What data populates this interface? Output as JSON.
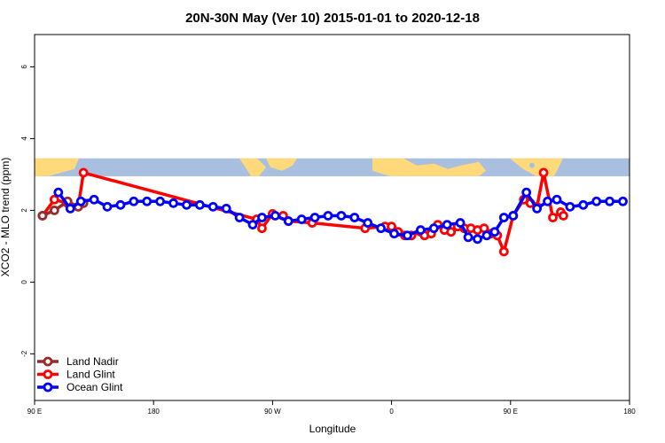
{
  "chart_data": {
    "type": "line",
    "title": "20N-30N May (Ver 10)   2015-01-01 to 2020-12-18",
    "xlabel": "Longitude",
    "ylabel": "XCO2 - MLO trend (ppm)",
    "xlim": [
      90,
      540
    ],
    "ylim": [
      -3.3,
      6.9
    ],
    "x_ticks": [
      {
        "value": 90,
        "label": "90 E"
      },
      {
        "value": 180,
        "label": "180"
      },
      {
        "value": 270,
        "label": "90 W"
      },
      {
        "value": 360,
        "label": "0"
      },
      {
        "value": 450,
        "label": "90 E"
      },
      {
        "value": 540,
        "label": "180"
      }
    ],
    "y_ticks": [
      {
        "value": -2,
        "label": "-2"
      },
      {
        "value": 0,
        "label": "0"
      },
      {
        "value": 2,
        "label": "2"
      },
      {
        "value": 4,
        "label": "4"
      },
      {
        "value": 6,
        "label": "6"
      }
    ],
    "map_strip": {
      "y_bottom": 2.95,
      "y_top": 3.45,
      "ocean_color": "#a9bfe0",
      "land_color": "#ffd97a"
    },
    "legend": {
      "position": "bottom-left"
    },
    "series": [
      {
        "name": "Land Nadir",
        "color": "#9b2a2a",
        "x": [
          96,
          105,
          115,
          123,
          127
        ],
        "y": [
          1.85,
          2.0,
          2.25,
          2.1,
          2.2
        ]
      },
      {
        "name": "Land Glint",
        "color": "#ff0000",
        "x": [
          96,
          105,
          115,
          123,
          127,
          258,
          262,
          270,
          278,
          282,
          300,
          340,
          355,
          360,
          365,
          370,
          375,
          382,
          385,
          390,
          395,
          400,
          405,
          410,
          415,
          420,
          425,
          430,
          435,
          440,
          445,
          452,
          460,
          465,
          470,
          475,
          482,
          488,
          490
        ],
        "y": [
          1.85,
          2.3,
          2.2,
          2.1,
          3.05,
          1.75,
          1.5,
          1.9,
          1.85,
          1.7,
          1.65,
          1.5,
          1.55,
          1.55,
          1.4,
          1.3,
          1.3,
          1.4,
          1.3,
          1.35,
          1.6,
          1.45,
          1.4,
          1.55,
          1.5,
          1.5,
          1.45,
          1.5,
          1.35,
          1.3,
          0.85,
          1.85,
          2.3,
          2.2,
          2.1,
          3.05,
          1.8,
          1.95,
          1.85
        ],
        "draw_order": [
          0,
          1,
          2,
          3,
          4
        ]
      },
      {
        "name": "Ocean Glint",
        "color": "#0000ff",
        "x": [
          108,
          117,
          125,
          135,
          145,
          155,
          165,
          175,
          185,
          195,
          205,
          215,
          225,
          235,
          245,
          255,
          262,
          272,
          282,
          292,
          302,
          312,
          322,
          332,
          342,
          352,
          362,
          372,
          382,
          392,
          402,
          412,
          418,
          425,
          432,
          438,
          445,
          452,
          462,
          470,
          478,
          485,
          495,
          505,
          515,
          525,
          535
        ],
        "y": [
          2.5,
          2.05,
          2.25,
          2.3,
          2.1,
          2.15,
          2.25,
          2.25,
          2.25,
          2.2,
          2.15,
          2.15,
          2.1,
          2.05,
          1.8,
          1.6,
          1.8,
          1.85,
          1.7,
          1.75,
          1.8,
          1.85,
          1.85,
          1.8,
          1.65,
          1.5,
          1.35,
          1.3,
          1.45,
          1.5,
          1.6,
          1.65,
          1.25,
          1.2,
          1.3,
          1.4,
          1.8,
          1.85,
          2.5,
          2.05,
          2.25,
          2.3,
          2.1,
          2.15,
          2.25,
          2.25,
          2.25
        ]
      }
    ]
  }
}
